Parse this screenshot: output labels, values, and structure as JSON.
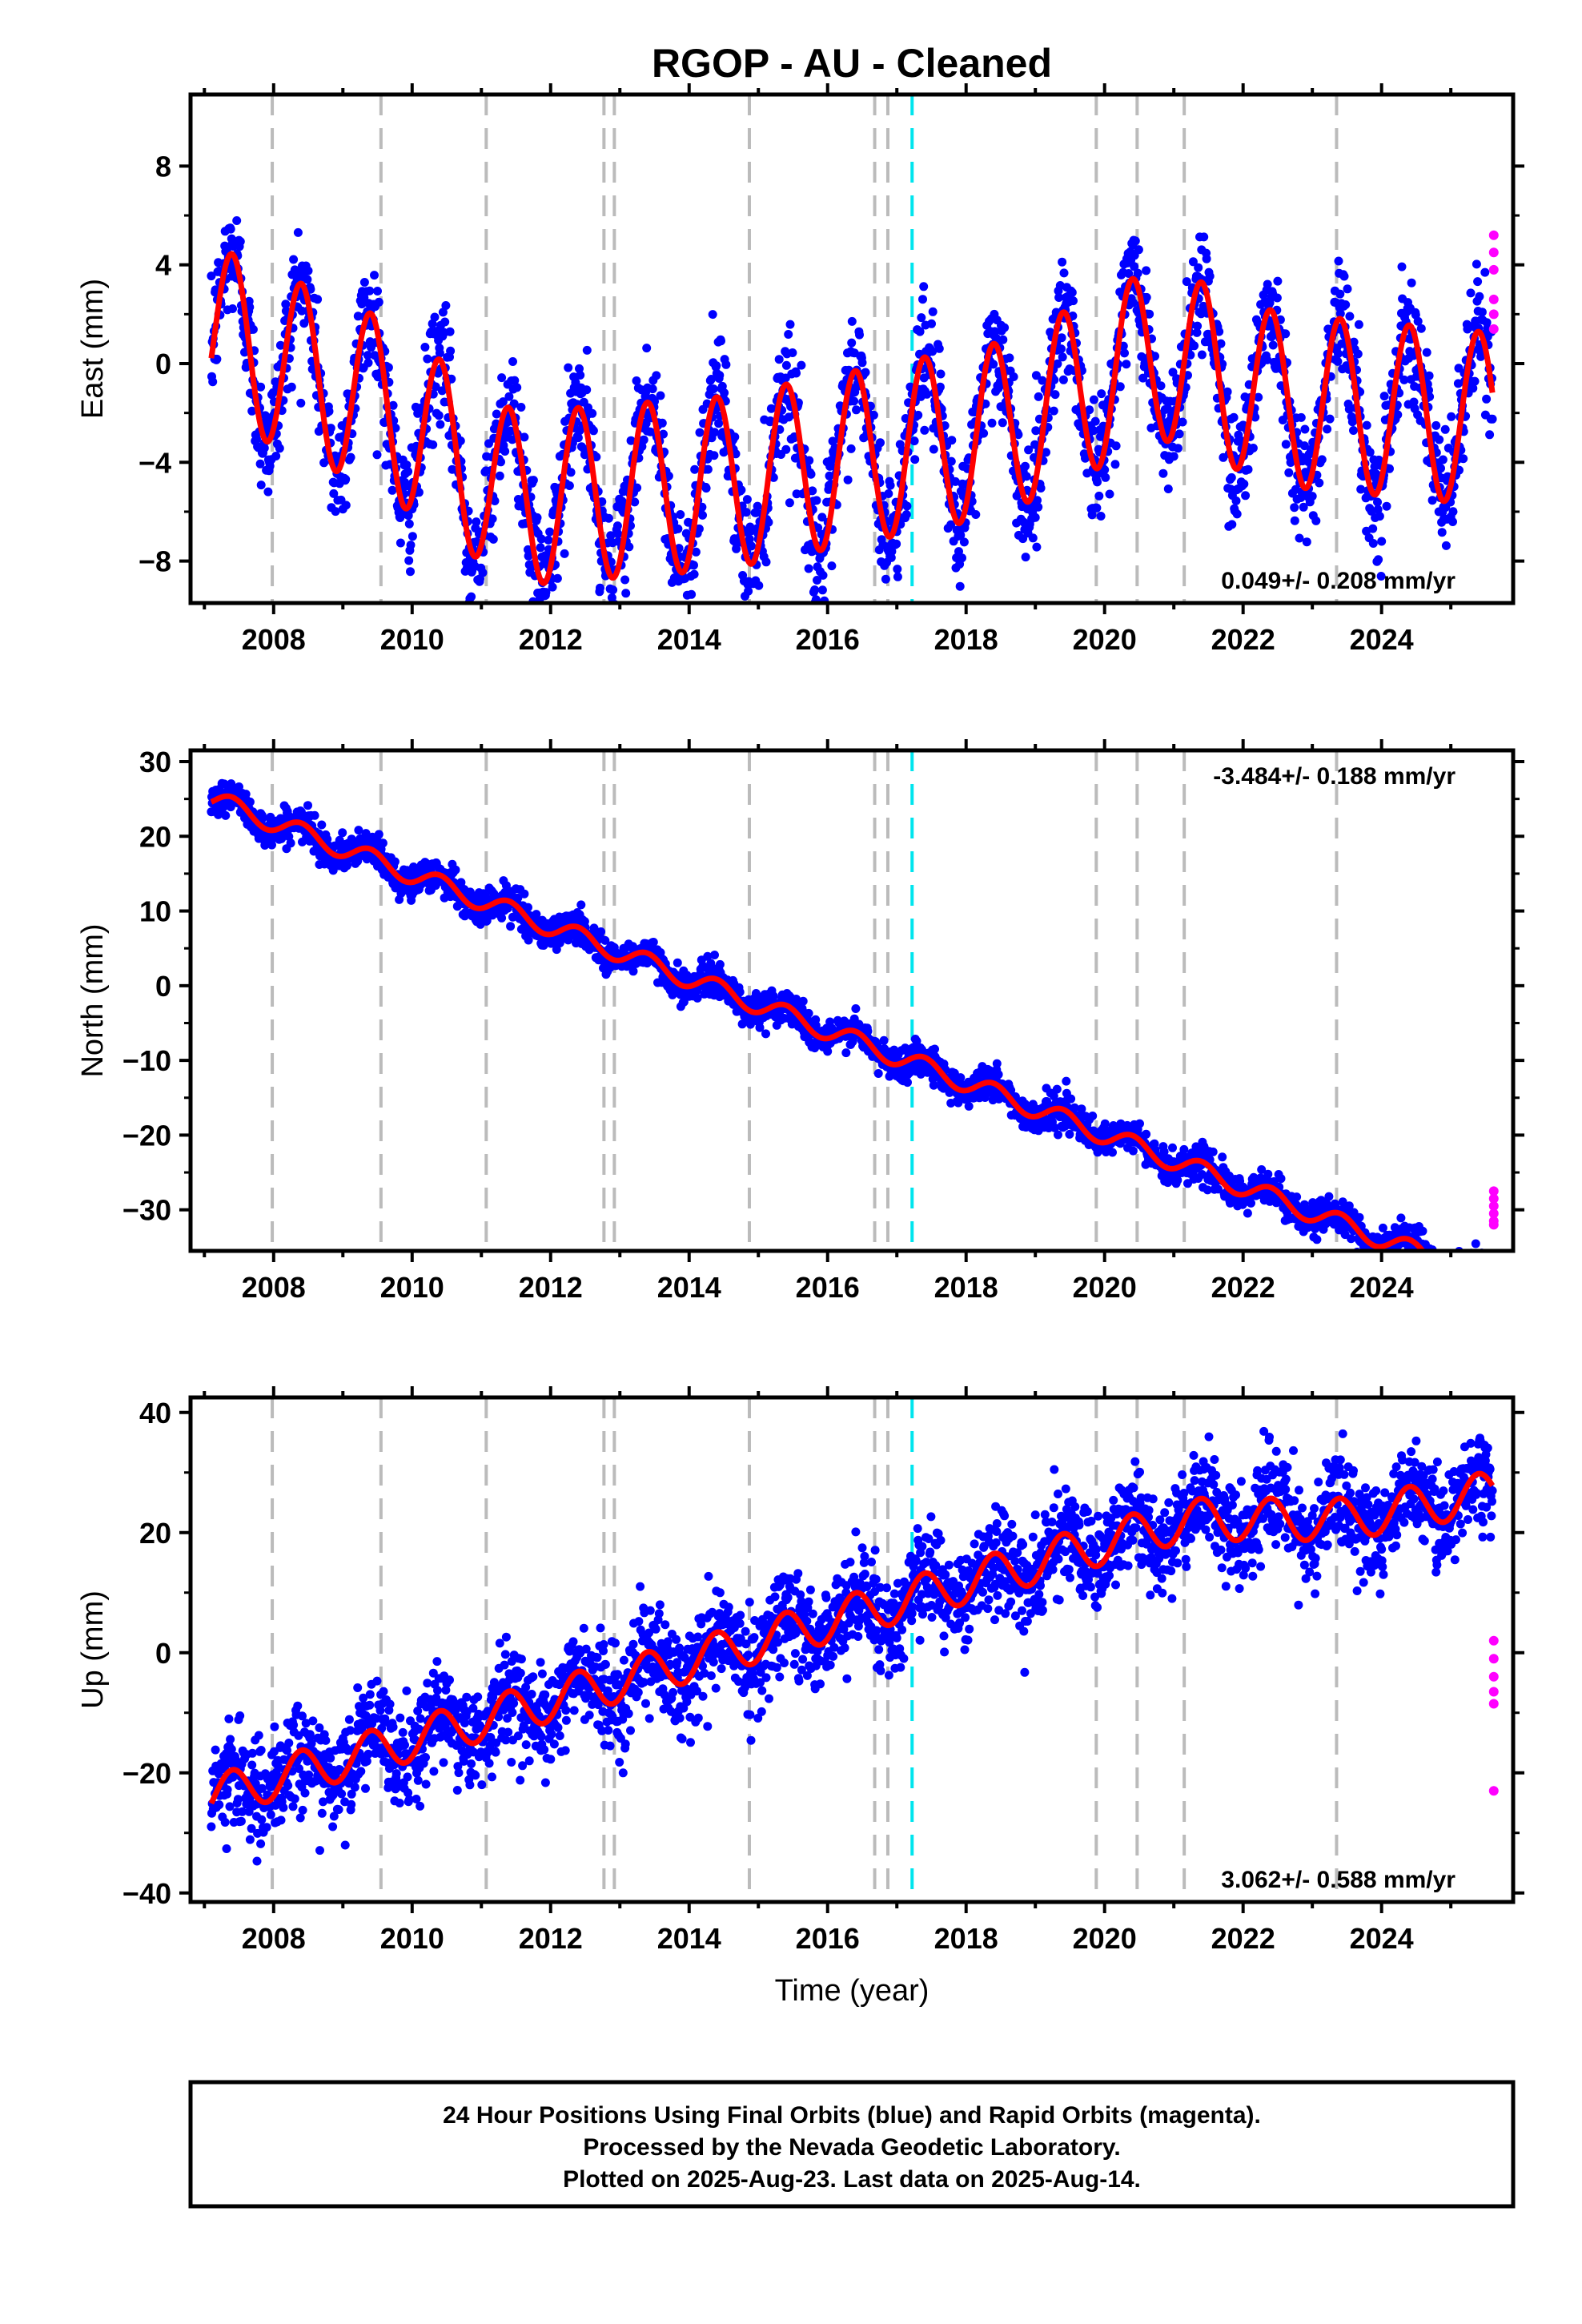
{
  "chart_data": {
    "type": "scatter",
    "title": "RGOP  - AU - Cleaned",
    "xlabel": "Time (year)",
    "x_ticks": [
      2008,
      2010,
      2012,
      2014,
      2016,
      2018,
      2020,
      2022,
      2024
    ],
    "xlim": [
      2006.8,
      2025.9
    ],
    "equipment_change_lines": [
      2007.98,
      2009.55,
      2011.07,
      2012.77,
      2012.92,
      2014.87,
      2016.68,
      2016.87,
      2019.88,
      2020.47,
      2021.15,
      2023.35
    ],
    "earthquake_lines": [
      2017.22
    ],
    "colors": {
      "final_orbits": "#0000ff",
      "rapid_orbits": "#ff00ff",
      "model_fit": "#ff0000",
      "equipment_line": "#bbbbbb",
      "earthquake_line": "#00e5ee"
    },
    "panels": [
      {
        "ylabel": "East (mm)",
        "ylim": [
          -9.7,
          10.9
        ],
        "y_ticks": [
          8,
          4,
          0,
          -4,
          -8
        ],
        "rate_text": "0.049+/- 0.208 mm/yr",
        "rate_position": "bottom-right",
        "trend": {
          "intercept_2007": 1.3,
          "rate": 0.049,
          "slow_pattern": [
            [
              2007.1,
              4.0
            ],
            [
              2009.5,
              1.0
            ],
            [
              2011.5,
              -3.0
            ],
            [
              2014.5,
              -2.5
            ],
            [
              2016.5,
              -1.5
            ],
            [
              2018.5,
              -0.5
            ],
            [
              2020.8,
              2.5
            ],
            [
              2022.5,
              0.5
            ],
            [
              2025.7,
              -0.5
            ]
          ]
        },
        "seasonal_amplitude": 3.5,
        "noise": 1.2,
        "rapid_points": [
          5.2,
          4.5,
          3.8,
          2.6,
          2.0,
          1.4
        ]
      },
      {
        "ylabel": "North (mm)",
        "ylim": [
          -35.5,
          31.5
        ],
        "y_ticks": [
          30,
          20,
          10,
          0,
          -10,
          -20,
          -30
        ],
        "rate_text": "-3.484+/- 0.188 mm/yr",
        "rate_position": "top-right",
        "trend": {
          "intercept_2007": 25.0,
          "rate": -3.484,
          "slow_pattern": [
            [
              2007.1,
              0
            ],
            [
              2025.7,
              0
            ]
          ]
        },
        "seasonal_amplitude": 1.3,
        "noise": 1.1,
        "rapid_points": [
          -27.5,
          -28.5,
          -29.5,
          -30.5,
          -31.5,
          -32.0
        ]
      },
      {
        "ylabel": "Up (mm)",
        "ylim": [
          -41.5,
          42.5
        ],
        "y_ticks": [
          40,
          20,
          0,
          -20,
          -40
        ],
        "rate_text": "3.062+/- 0.588 mm/yr",
        "rate_position": "bottom-right",
        "trend": {
          "intercept_2007": -24.0,
          "rate": 3.062,
          "slow_pattern": [
            [
              2007.1,
              0
            ],
            [
              2021.2,
              3
            ],
            [
              2023.5,
              -4
            ],
            [
              2025.7,
              -6
            ]
          ]
        },
        "seasonal_amplitude": 3.5,
        "noise": 4.0,
        "rapid_points": [
          2.0,
          -1.0,
          -4.0,
          -6.5,
          -8.5,
          -23.0
        ]
      }
    ]
  },
  "footer": {
    "line1": "24 Hour Positions Using Final Orbits (blue) and Rapid Orbits (magenta).",
    "line2": "Processed by the Nevada Geodetic Laboratory.",
    "line3": "Plotted on 2025-Aug-23. Last data on 2025-Aug-14."
  }
}
